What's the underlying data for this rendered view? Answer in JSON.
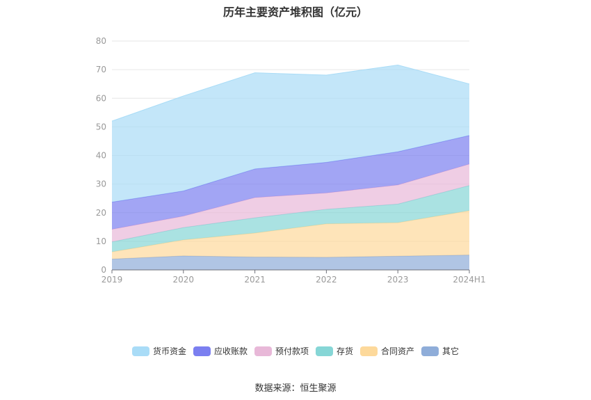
{
  "chart_data": {
    "type": "area",
    "stacked": true,
    "title": "历年主要资产堆积图（亿元）",
    "categories": [
      "2019",
      "2020",
      "2021",
      "2022",
      "2023",
      "2024H1"
    ],
    "ylim": [
      0,
      80
    ],
    "yticks": [
      0,
      10,
      20,
      30,
      40,
      50,
      60,
      70,
      80
    ],
    "grid": true,
    "legend_position": "bottom",
    "series": [
      {
        "name": "其它",
        "color": "#8fadd9",
        "values": [
          3.8,
          4.9,
          4.5,
          4.4,
          4.8,
          5.2
        ]
      },
      {
        "name": "合同资产",
        "color": "#fdd99b",
        "values": [
          2.5,
          5.6,
          8.4,
          11.7,
          11.7,
          15.5
        ]
      },
      {
        "name": "存货",
        "color": "#86d6d6",
        "values": [
          3.5,
          4.3,
          5.3,
          5.1,
          6.5,
          8.8
        ]
      },
      {
        "name": "预付款项",
        "color": "#e8b8d8",
        "values": [
          4.4,
          4.0,
          7.1,
          5.7,
          6.7,
          7.5
        ]
      },
      {
        "name": "应收账款",
        "color": "#7b7ff0",
        "values": [
          9.5,
          8.8,
          10.0,
          10.7,
          11.6,
          10.0
        ]
      },
      {
        "name": "货币资金",
        "color": "#a9dcf7",
        "values": [
          28.3,
          33.2,
          33.6,
          30.5,
          30.3,
          18.0
        ]
      }
    ]
  },
  "legend": [
    {
      "label": "货币资金",
      "color": "#a9dcf7"
    },
    {
      "label": "应收账款",
      "color": "#7b7ff0"
    },
    {
      "label": "预付款项",
      "color": "#e8b8d8"
    },
    {
      "label": "存货",
      "color": "#86d6d6"
    },
    {
      "label": "合同资产",
      "color": "#fdd99b"
    },
    {
      "label": "其它",
      "color": "#8fadd9"
    }
  ],
  "source": "数据来源：恒生聚源"
}
